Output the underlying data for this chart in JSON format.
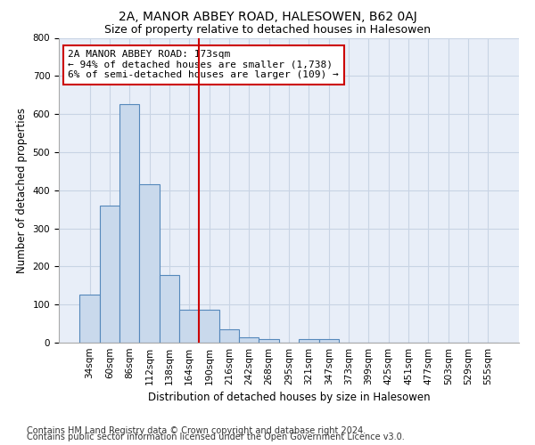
{
  "title": "2A, MANOR ABBEY ROAD, HALESOWEN, B62 0AJ",
  "subtitle": "Size of property relative to detached houses in Halesowen",
  "xlabel": "Distribution of detached houses by size in Halesowen",
  "ylabel": "Number of detached properties",
  "bar_values": [
    125,
    360,
    625,
    415,
    178,
    87,
    87,
    35,
    14,
    10,
    0,
    10,
    10,
    0,
    0,
    0,
    0,
    0,
    0,
    0,
    0
  ],
  "bin_labels": [
    "34sqm",
    "60sqm",
    "86sqm",
    "112sqm",
    "138sqm",
    "164sqm",
    "190sqm",
    "216sqm",
    "242sqm",
    "268sqm",
    "295sqm",
    "321sqm",
    "347sqm",
    "373sqm",
    "399sqm",
    "425sqm",
    "451sqm",
    "477sqm",
    "503sqm",
    "529sqm",
    "555sqm"
  ],
  "bar_color": "#c9d9ec",
  "bar_edge_color": "#5588bb",
  "grid_color": "#c8d4e4",
  "bg_color": "#e8eef8",
  "vline_x": 6.0,
  "vline_color": "#cc0000",
  "annotation_line1": "2A MANOR ABBEY ROAD: 173sqm",
  "annotation_line2": "← 94% of detached houses are smaller (1,738)",
  "annotation_line3": "6% of semi-detached houses are larger (109) →",
  "annotation_box_color": "#ffffff",
  "annotation_box_edge": "#cc0000",
  "ylim": [
    0,
    800
  ],
  "yticks": [
    0,
    100,
    200,
    300,
    400,
    500,
    600,
    700,
    800
  ],
  "footnote1": "Contains HM Land Registry data © Crown copyright and database right 2024.",
  "footnote2": "Contains public sector information licensed under the Open Government Licence v3.0.",
  "title_fontsize": 10,
  "subtitle_fontsize": 9,
  "xlabel_fontsize": 8.5,
  "ylabel_fontsize": 8.5,
  "tick_fontsize": 7.5,
  "annotation_fontsize": 8,
  "footnote_fontsize": 7
}
